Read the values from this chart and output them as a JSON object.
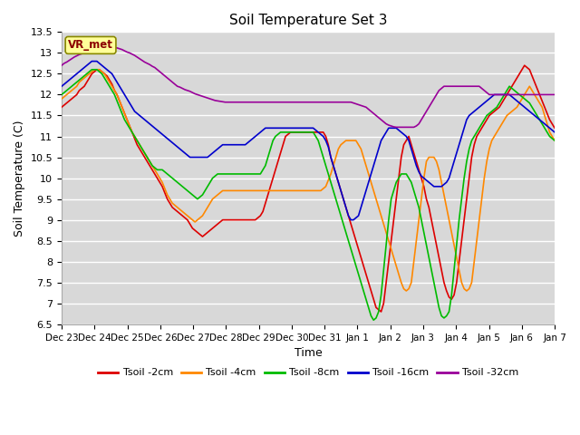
{
  "title": "Soil Temperature Set 3",
  "xlabel": "Time",
  "ylabel": "Soil Temperature (C)",
  "ylim": [
    6.5,
    13.5
  ],
  "yticks": [
    6.5,
    7.0,
    7.5,
    8.0,
    8.5,
    9.0,
    9.5,
    10.0,
    10.5,
    11.0,
    11.5,
    12.0,
    12.5,
    13.0,
    13.5
  ],
  "bg_color": "#d8d8d8",
  "plot_bg_color": "#d8d8d8",
  "grid_color": "white",
  "vr_label": "VR_met",
  "series_names": [
    "Tsoil -2cm",
    "Tsoil -4cm",
    "Tsoil -8cm",
    "Tsoil -16cm",
    "Tsoil -32cm"
  ],
  "colors": [
    "#dd0000",
    "#ff8800",
    "#00bb00",
    "#0000cc",
    "#990099"
  ],
  "xtick_labels": [
    "Dec 23",
    "Dec 24",
    "Dec 25",
    "Dec 26",
    "Dec 27",
    "Dec 28",
    "Dec 29",
    "Dec 30",
    "Dec 31",
    "Jan 1",
    "Jan 2",
    "Jan 3",
    "Jan 4",
    "Jan 5",
    "Jan 6",
    "Jan 7"
  ],
  "t2cm": [
    11.7,
    11.75,
    11.8,
    11.85,
    11.9,
    11.95,
    12.0,
    12.1,
    12.15,
    12.2,
    12.3,
    12.4,
    12.5,
    12.55,
    12.6,
    12.6,
    12.55,
    12.5,
    12.45,
    12.35,
    12.25,
    12.1,
    12.0,
    11.85,
    11.7,
    11.55,
    11.4,
    11.25,
    11.1,
    10.95,
    10.8,
    10.7,
    10.6,
    10.5,
    10.4,
    10.3,
    10.2,
    10.1,
    10.0,
    9.9,
    9.8,
    9.65,
    9.5,
    9.4,
    9.3,
    9.25,
    9.2,
    9.15,
    9.1,
    9.05,
    9.0,
    8.9,
    8.8,
    8.75,
    8.7,
    8.65,
    8.6,
    8.65,
    8.7,
    8.75,
    8.8,
    8.85,
    8.9,
    8.95,
    9.0,
    9.0,
    9.0,
    9.0,
    9.0,
    9.0,
    9.0,
    9.0,
    9.0,
    9.0,
    9.0,
    9.0,
    9.0,
    9.0,
    9.05,
    9.1,
    9.2,
    9.4,
    9.6,
    9.8,
    10.0,
    10.2,
    10.4,
    10.6,
    10.8,
    11.0,
    11.05,
    11.1,
    11.1,
    11.1,
    11.1,
    11.1,
    11.1,
    11.1,
    11.1,
    11.1,
    11.1,
    11.1,
    11.1,
    11.1,
    11.1,
    11.0,
    10.8,
    10.5,
    10.3,
    10.1,
    9.9,
    9.7,
    9.5,
    9.3,
    9.1,
    8.9,
    8.7,
    8.5,
    8.3,
    8.1,
    7.9,
    7.7,
    7.5,
    7.3,
    7.1,
    6.9,
    6.85,
    6.8,
    7.0,
    7.5,
    8.0,
    8.5,
    9.0,
    9.5,
    10.0,
    10.5,
    10.8,
    10.9,
    11.0,
    10.8,
    10.6,
    10.4,
    10.2,
    10.0,
    9.8,
    9.5,
    9.3,
    9.0,
    8.7,
    8.4,
    8.1,
    7.8,
    7.5,
    7.3,
    7.15,
    7.1,
    7.2,
    7.5,
    8.0,
    8.5,
    9.0,
    9.5,
    10.0,
    10.5,
    10.8,
    11.0,
    11.1,
    11.2,
    11.3,
    11.4,
    11.5,
    11.55,
    11.6,
    11.65,
    11.7,
    11.8,
    11.9,
    12.0,
    12.1,
    12.2,
    12.3,
    12.4,
    12.5,
    12.6,
    12.7,
    12.65,
    12.6,
    12.45,
    12.3,
    12.15,
    12.0,
    11.85,
    11.7,
    11.55,
    11.4,
    11.3,
    11.2
  ],
  "t4cm": [
    11.9,
    11.95,
    12.0,
    12.05,
    12.1,
    12.15,
    12.2,
    12.3,
    12.35,
    12.4,
    12.45,
    12.5,
    12.55,
    12.6,
    12.6,
    12.6,
    12.55,
    12.5,
    12.4,
    12.3,
    12.2,
    12.1,
    12.0,
    11.85,
    11.7,
    11.55,
    11.4,
    11.25,
    11.1,
    11.0,
    10.9,
    10.8,
    10.7,
    10.6,
    10.5,
    10.4,
    10.3,
    10.2,
    10.1,
    10.0,
    9.9,
    9.75,
    9.6,
    9.5,
    9.4,
    9.35,
    9.3,
    9.25,
    9.2,
    9.15,
    9.1,
    9.05,
    9.0,
    8.95,
    9.0,
    9.05,
    9.1,
    9.2,
    9.3,
    9.4,
    9.5,
    9.55,
    9.6,
    9.65,
    9.7,
    9.7,
    9.7,
    9.7,
    9.7,
    9.7,
    9.7,
    9.7,
    9.7,
    9.7,
    9.7,
    9.7,
    9.7,
    9.7,
    9.7,
    9.7,
    9.7,
    9.7,
    9.7,
    9.7,
    9.7,
    9.7,
    9.7,
    9.7,
    9.7,
    9.7,
    9.7,
    9.7,
    9.7,
    9.7,
    9.7,
    9.7,
    9.7,
    9.7,
    9.7,
    9.7,
    9.7,
    9.7,
    9.7,
    9.7,
    9.75,
    9.8,
    9.95,
    10.1,
    10.3,
    10.5,
    10.7,
    10.8,
    10.85,
    10.9,
    10.9,
    10.9,
    10.9,
    10.9,
    10.8,
    10.7,
    10.5,
    10.3,
    10.1,
    9.9,
    9.7,
    9.5,
    9.3,
    9.1,
    8.9,
    8.7,
    8.5,
    8.3,
    8.1,
    7.9,
    7.7,
    7.5,
    7.35,
    7.3,
    7.35,
    7.5,
    8.0,
    8.5,
    9.0,
    9.5,
    10.0,
    10.4,
    10.5,
    10.5,
    10.5,
    10.4,
    10.2,
    9.9,
    9.6,
    9.3,
    9.0,
    8.7,
    8.4,
    8.1,
    7.8,
    7.5,
    7.35,
    7.3,
    7.35,
    7.5,
    8.0,
    8.5,
    9.0,
    9.5,
    10.0,
    10.4,
    10.7,
    10.9,
    11.0,
    11.1,
    11.2,
    11.3,
    11.4,
    11.5,
    11.55,
    11.6,
    11.65,
    11.7,
    11.8,
    11.9,
    12.0,
    12.1,
    12.2,
    12.1,
    12.0,
    11.9,
    11.8,
    11.7,
    11.5,
    11.3,
    11.1,
    11.0,
    10.9
  ],
  "t8cm": [
    12.0,
    12.05,
    12.1,
    12.15,
    12.2,
    12.25,
    12.3,
    12.35,
    12.4,
    12.45,
    12.5,
    12.55,
    12.6,
    12.6,
    12.6,
    12.55,
    12.5,
    12.4,
    12.3,
    12.2,
    12.1,
    12.0,
    11.85,
    11.7,
    11.55,
    11.4,
    11.3,
    11.2,
    11.1,
    11.0,
    10.9,
    10.8,
    10.7,
    10.6,
    10.5,
    10.4,
    10.3,
    10.25,
    10.2,
    10.2,
    10.2,
    10.15,
    10.1,
    10.05,
    10.0,
    9.95,
    9.9,
    9.85,
    9.8,
    9.75,
    9.7,
    9.65,
    9.6,
    9.55,
    9.5,
    9.55,
    9.6,
    9.7,
    9.8,
    9.9,
    10.0,
    10.05,
    10.1,
    10.1,
    10.1,
    10.1,
    10.1,
    10.1,
    10.1,
    10.1,
    10.1,
    10.1,
    10.1,
    10.1,
    10.1,
    10.1,
    10.1,
    10.1,
    10.1,
    10.1,
    10.2,
    10.3,
    10.5,
    10.7,
    10.9,
    11.0,
    11.05,
    11.1,
    11.1,
    11.1,
    11.1,
    11.1,
    11.1,
    11.1,
    11.1,
    11.1,
    11.1,
    11.1,
    11.1,
    11.1,
    11.1,
    11.0,
    10.9,
    10.7,
    10.5,
    10.3,
    10.1,
    9.9,
    9.7,
    9.5,
    9.3,
    9.1,
    8.9,
    8.7,
    8.5,
    8.3,
    8.1,
    7.9,
    7.7,
    7.5,
    7.3,
    7.1,
    6.9,
    6.7,
    6.6,
    6.65,
    6.8,
    7.2,
    7.8,
    8.4,
    9.0,
    9.5,
    9.7,
    9.9,
    10.0,
    10.1,
    10.1,
    10.1,
    10.0,
    9.9,
    9.7,
    9.5,
    9.3,
    9.0,
    8.7,
    8.4,
    8.1,
    7.8,
    7.5,
    7.2,
    6.9,
    6.7,
    6.65,
    6.7,
    6.8,
    7.2,
    7.8,
    8.4,
    9.0,
    9.5,
    10.0,
    10.4,
    10.7,
    10.9,
    11.0,
    11.1,
    11.2,
    11.3,
    11.4,
    11.5,
    11.55,
    11.6,
    11.65,
    11.7,
    11.8,
    11.9,
    12.0,
    12.1,
    12.2,
    12.15,
    12.1,
    12.05,
    12.0,
    11.95,
    11.9,
    11.85,
    11.8,
    11.7,
    11.6,
    11.5,
    11.4,
    11.3,
    11.2,
    11.1,
    11.0,
    10.95,
    10.9
  ],
  "t16cm": [
    12.2,
    12.25,
    12.3,
    12.35,
    12.4,
    12.45,
    12.5,
    12.55,
    12.6,
    12.65,
    12.7,
    12.75,
    12.8,
    12.8,
    12.8,
    12.75,
    12.7,
    12.65,
    12.6,
    12.55,
    12.5,
    12.4,
    12.3,
    12.2,
    12.1,
    12.0,
    11.9,
    11.8,
    11.7,
    11.6,
    11.55,
    11.5,
    11.45,
    11.4,
    11.35,
    11.3,
    11.25,
    11.2,
    11.15,
    11.1,
    11.05,
    11.0,
    10.95,
    10.9,
    10.85,
    10.8,
    10.75,
    10.7,
    10.65,
    10.6,
    10.55,
    10.5,
    10.5,
    10.5,
    10.5,
    10.5,
    10.5,
    10.5,
    10.5,
    10.55,
    10.6,
    10.65,
    10.7,
    10.75,
    10.8,
    10.8,
    10.8,
    10.8,
    10.8,
    10.8,
    10.8,
    10.8,
    10.8,
    10.8,
    10.85,
    10.9,
    10.95,
    11.0,
    11.05,
    11.1,
    11.15,
    11.2,
    11.2,
    11.2,
    11.2,
    11.2,
    11.2,
    11.2,
    11.2,
    11.2,
    11.2,
    11.2,
    11.2,
    11.2,
    11.2,
    11.2,
    11.2,
    11.2,
    11.2,
    11.2,
    11.2,
    11.15,
    11.1,
    11.05,
    11.0,
    10.9,
    10.75,
    10.5,
    10.3,
    10.1,
    9.9,
    9.7,
    9.5,
    9.3,
    9.1,
    9.0,
    9.0,
    9.05,
    9.1,
    9.3,
    9.5,
    9.7,
    9.9,
    10.1,
    10.3,
    10.5,
    10.7,
    10.9,
    11.0,
    11.1,
    11.2,
    11.2,
    11.2,
    11.2,
    11.15,
    11.1,
    11.05,
    11.0,
    10.9,
    10.7,
    10.5,
    10.3,
    10.15,
    10.05,
    10.0,
    9.95,
    9.9,
    9.85,
    9.8,
    9.8,
    9.8,
    9.8,
    9.85,
    9.9,
    10.0,
    10.2,
    10.4,
    10.6,
    10.8,
    11.0,
    11.2,
    11.4,
    11.5,
    11.55,
    11.6,
    11.65,
    11.7,
    11.75,
    11.8,
    11.85,
    11.9,
    11.95,
    12.0,
    12.0,
    12.0,
    12.0,
    12.0,
    12.0,
    12.0,
    11.95,
    11.9,
    11.85,
    11.8,
    11.75,
    11.7,
    11.65,
    11.6,
    11.55,
    11.5,
    11.45,
    11.4,
    11.35,
    11.3,
    11.25,
    11.2,
    11.15,
    11.1
  ],
  "t32cm": [
    12.7,
    12.75,
    12.78,
    12.82,
    12.86,
    12.9,
    12.93,
    12.96,
    12.98,
    13.0,
    13.02,
    13.05,
    13.07,
    13.08,
    13.1,
    13.12,
    13.13,
    13.14,
    13.15,
    13.15,
    13.15,
    13.13,
    13.12,
    13.1,
    13.08,
    13.05,
    13.02,
    13.0,
    12.97,
    12.94,
    12.9,
    12.86,
    12.82,
    12.78,
    12.75,
    12.72,
    12.68,
    12.65,
    12.6,
    12.55,
    12.5,
    12.45,
    12.4,
    12.35,
    12.3,
    12.25,
    12.2,
    12.18,
    12.15,
    12.12,
    12.1,
    12.08,
    12.05,
    12.02,
    12.0,
    11.98,
    11.96,
    11.94,
    11.92,
    11.9,
    11.88,
    11.86,
    11.85,
    11.84,
    11.83,
    11.82,
    11.82,
    11.82,
    11.82,
    11.82,
    11.82,
    11.82,
    11.82,
    11.82,
    11.82,
    11.82,
    11.82,
    11.82,
    11.82,
    11.82,
    11.82,
    11.82,
    11.82,
    11.82,
    11.82,
    11.82,
    11.82,
    11.82,
    11.82,
    11.82,
    11.82,
    11.82,
    11.82,
    11.82,
    11.82,
    11.82,
    11.82,
    11.82,
    11.82,
    11.82,
    11.82,
    11.82,
    11.82,
    11.82,
    11.82,
    11.82,
    11.82,
    11.82,
    11.82,
    11.82,
    11.82,
    11.82,
    11.82,
    11.82,
    11.82,
    11.82,
    11.8,
    11.78,
    11.76,
    11.74,
    11.72,
    11.7,
    11.65,
    11.6,
    11.55,
    11.5,
    11.45,
    11.4,
    11.35,
    11.3,
    11.27,
    11.25,
    11.23,
    11.22,
    11.22,
    11.22,
    11.22,
    11.22,
    11.22,
    11.22,
    11.22,
    11.25,
    11.3,
    11.4,
    11.5,
    11.6,
    11.7,
    11.8,
    11.9,
    12.0,
    12.1,
    12.15,
    12.2,
    12.2,
    12.2,
    12.2,
    12.2,
    12.2,
    12.2,
    12.2,
    12.2,
    12.2,
    12.2,
    12.2,
    12.2,
    12.2,
    12.2,
    12.15,
    12.1,
    12.05,
    12.0,
    12.0,
    12.0,
    12.0,
    12.0,
    12.0,
    12.0,
    12.0,
    12.0,
    12.0,
    12.0,
    12.0,
    12.0,
    12.0,
    12.0,
    12.0,
    12.0,
    12.0,
    12.0,
    12.0,
    12.0,
    12.0,
    12.0,
    12.0,
    12.0,
    12.0,
    12.0
  ]
}
